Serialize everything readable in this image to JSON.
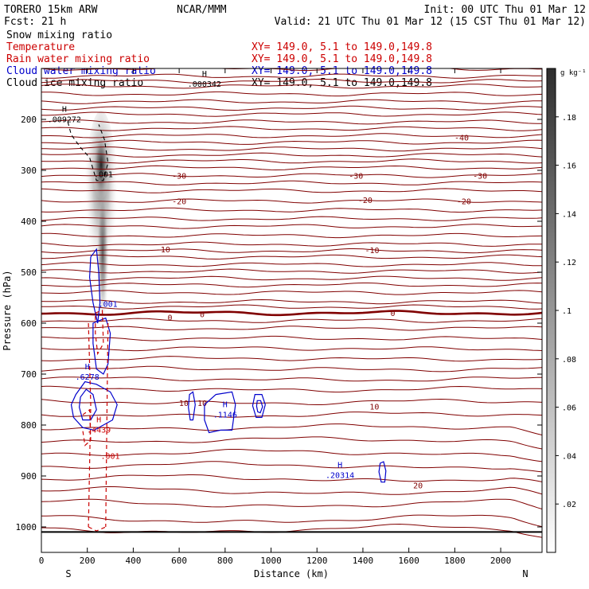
{
  "header": {
    "model": "TORERO   15km ARW",
    "org": "NCAR/MMM",
    "init": "Init: 00 UTC Thu 01 Mar 12",
    "fcst": "Fcst:    21 h",
    "valid": "Valid: 21 UTC Thu 01 Mar 12 (15 CST Thu 01 Mar 12)"
  },
  "fields": [
    {
      "label": "Snow mixing ratio",
      "xy": "",
      "color": "#000000"
    },
    {
      "label": "Temperature",
      "xy": "XY= 149.0,  5.1 to 149.0,149.8",
      "color": "#cc0000"
    },
    {
      "label": "Rain water mixing ratio",
      "xy": "XY= 149.0,  5.1 to 149.0,149.8",
      "color": "#cc0000"
    },
    {
      "label": "Cloud water mixing ratio",
      "xy": "XY= 149.0,  5.1 to 149.0,149.8",
      "color": "#0000cc"
    },
    {
      "label": "Cloud ice mixing ratio",
      "xy": "XY= 149.0,  5.1 to 149.0,149.8",
      "color": "#000000"
    }
  ],
  "colors": {
    "temperature": "#800000",
    "cloud_water": "#0000cc",
    "rain_water": "#cc0000",
    "axes": "#000000"
  },
  "chart_data": {
    "type": "heatmap",
    "xlabel": "Distance (km)",
    "ylabel": "Pressure (hPa)",
    "xlim": [
      0,
      2180
    ],
    "ylim": [
      1050,
      100
    ],
    "x_ticks": [
      0,
      200,
      400,
      600,
      800,
      1000,
      1200,
      1400,
      1600,
      1800,
      2000
    ],
    "y_ticks": [
      200,
      300,
      400,
      500,
      600,
      700,
      800,
      900,
      1000
    ],
    "x_end_labels": {
      "left": "S",
      "right": "N"
    },
    "colorbar": {
      "unit": "g kg⁻¹",
      "min": 0,
      "max": 0.2,
      "tick_values": [
        0.02,
        0.04,
        0.06,
        0.08,
        0.1,
        0.12,
        0.14,
        0.16,
        0.18
      ],
      "tick_labels": [
        ".02",
        ".04",
        ".06",
        ".08",
        ".1",
        ".12",
        ".14",
        ".16",
        ".18"
      ]
    },
    "snow_plume": {
      "x_center": 260,
      "core_pressure": 295,
      "top_pressure": 230,
      "bottom_pressure": 595,
      "max": 0.2
    },
    "temperature_contours": [
      {
        "level": -40,
        "label": "-40",
        "label_points": [
          [
            1830,
            235
          ]
        ]
      },
      {
        "level": -30,
        "label": "-30",
        "label_points": [
          [
            600,
            310
          ],
          [
            1370,
            310
          ],
          [
            1910,
            310
          ]
        ]
      },
      {
        "level": -20,
        "label": "-20",
        "label_points": [
          [
            600,
            360
          ],
          [
            1410,
            358
          ],
          [
            1840,
            360
          ]
        ]
      },
      {
        "level": -10,
        "label": "-10",
        "label_points": [
          [
            530,
            455
          ],
          [
            1440,
            456
          ]
        ]
      },
      {
        "level": 0,
        "label": "0",
        "label_points": [
          [
            560,
            588
          ],
          [
            700,
            582
          ],
          [
            1530,
            580
          ]
        ]
      },
      {
        "level": 10,
        "label": "10",
        "label_points": [
          [
            620,
            756
          ],
          [
            700,
            756
          ],
          [
            1450,
            763
          ]
        ]
      },
      {
        "level": 20,
        "label": "20",
        "label_points": [
          [
            1640,
            918
          ]
        ]
      }
    ],
    "annotations": [
      {
        "label": "H",
        "value": ".000342",
        "x": 710,
        "y_pressure": 133,
        "color": "#000000"
      },
      {
        "label": "H",
        "value": ".009272",
        "x": 100,
        "y_pressure": 202,
        "color": "#000000"
      },
      {
        "label": "",
        "value": ".001",
        "x": 270,
        "y_pressure": 310,
        "color": "#000000"
      },
      {
        "label": "",
        "value": ".001",
        "x": 290,
        "y_pressure": 565,
        "color": "#0000cc"
      },
      {
        "label": "H",
        "value": ".6278",
        "x": 200,
        "y_pressure": 708,
        "color": "#0000cc"
      },
      {
        "label": "H",
        "value": ".4439",
        "x": 250,
        "y_pressure": 812,
        "color": "#cc0000"
      },
      {
        "label": "H",
        "value": ".1146",
        "x": 800,
        "y_pressure": 782,
        "color": "#0000cc"
      },
      {
        "label": "H",
        "value": ".20314",
        "x": 1300,
        "y_pressure": 901,
        "color": "#0000cc"
      },
      {
        "label": "",
        "value": ".001",
        "x": 300,
        "y_pressure": 863,
        "color": "#cc0000"
      }
    ]
  }
}
